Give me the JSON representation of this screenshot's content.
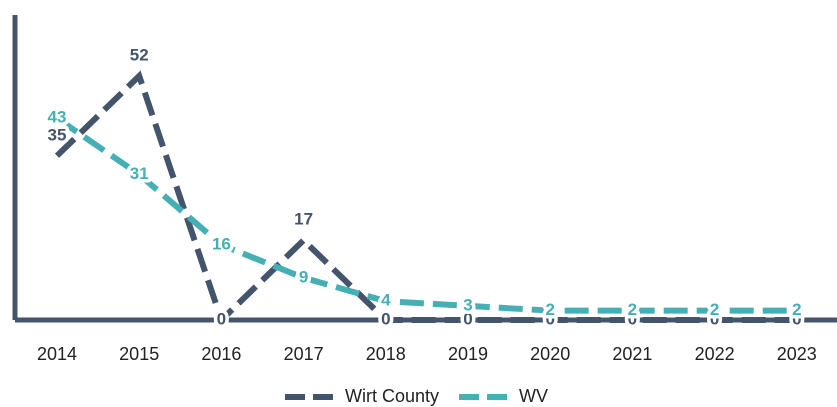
{
  "chart_data": {
    "type": "line",
    "categories": [
      "2014",
      "2015",
      "2016",
      "2017",
      "2018",
      "2019",
      "2020",
      "2021",
      "2022",
      "2023"
    ],
    "series": [
      {
        "name": "Wirt County",
        "color": "#44546a",
        "values": [
          35,
          52,
          0,
          17,
          0,
          0,
          0,
          0,
          0,
          0
        ]
      },
      {
        "name": "WV",
        "color": "#45b0b4",
        "values": [
          43,
          31,
          16,
          9,
          4,
          3,
          2,
          2,
          2,
          2
        ]
      }
    ],
    "ylim": [
      0,
      65
    ],
    "legend": "bottom"
  }
}
